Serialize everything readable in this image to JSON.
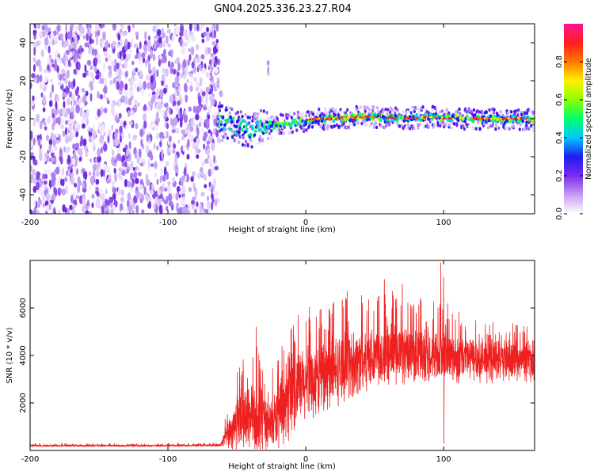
{
  "title": "GN04.2025.336.23.27.R04",
  "chart_data": [
    {
      "type": "heatmap",
      "xlabel": "Height of straight line (km)",
      "ylabel": "Frequency (Hz)",
      "xlim": [
        -200,
        166
      ],
      "ylim": [
        -50,
        50
      ],
      "xticks": [
        -200,
        -100,
        0,
        100
      ],
      "yticks": [
        -40,
        -20,
        0,
        20,
        40
      ],
      "noise_region_x": [
        -200,
        -63
      ],
      "signal_track": {
        "x": [
          -63,
          -55,
          -45,
          -38,
          -30,
          -20,
          -10,
          0,
          10,
          20,
          30,
          40,
          50,
          60,
          70,
          80,
          90,
          100,
          110,
          120,
          130,
          140,
          150,
          160,
          166
        ],
        "freq": [
          -2,
          -3,
          -5,
          -6,
          -4,
          -3,
          -2,
          -1,
          0,
          0,
          0.5,
          1,
          1,
          0.5,
          0,
          0.5,
          1,
          0.5,
          0,
          0,
          0,
          0,
          0,
          -0.5,
          -1
        ]
      },
      "isolated_blob": {
        "x": -27,
        "freq": [
          22,
          30
        ]
      },
      "colorbar": {
        "label": "Normalized spectral amplitude",
        "range": [
          0,
          1
        ],
        "ticks": [
          0.0,
          0.2,
          0.4,
          0.6,
          0.8
        ],
        "tick_labels": [
          "0.0",
          "0.2",
          "0.4",
          "0.6",
          "0.8"
        ],
        "colors": [
          "#ffffff",
          "#c89bf2",
          "#7a2bf0",
          "#1f1cf0",
          "#00c8ff",
          "#00ff6a",
          "#8cff00",
          "#fff000",
          "#ff7800",
          "#ff1e1e",
          "#ff1493"
        ]
      }
    },
    {
      "type": "line",
      "xlabel": "Height of straight line (km)",
      "ylabel": "SNR (10 * v/v)",
      "xlim": [
        -200,
        166
      ],
      "ylim": [
        0,
        8000
      ],
      "xticks": [
        -200,
        -100,
        0,
        100
      ],
      "yticks": [
        2000,
        4000,
        6000
      ],
      "color": "#ee2020",
      "envelope": {
        "x": [
          -200,
          -120,
          -62,
          -55,
          -45,
          -35,
          -25,
          -20,
          -15,
          -10,
          -5,
          0,
          10,
          20,
          30,
          40,
          50,
          60,
          70,
          80,
          90,
          100,
          110,
          120,
          130,
          140,
          150,
          160,
          166
        ],
        "y": [
          200,
          200,
          220,
          800,
          1400,
          1400,
          1100,
          1400,
          1800,
          2200,
          2600,
          2800,
          3000,
          3300,
          3600,
          3800,
          4000,
          4100,
          4100,
          4000,
          4050,
          4000,
          3900,
          3900,
          3800,
          3800,
          3750,
          3700,
          3700
        ],
        "amp": [
          50,
          50,
          60,
          900,
          1500,
          1700,
          1300,
          1500,
          1600,
          1700,
          1800,
          1800,
          1700,
          1700,
          1600,
          1600,
          1600,
          1500,
          1400,
          1400,
          1300,
          1300,
          1200,
          1100,
          1000,
          1000,
          900,
          900,
          900
        ]
      },
      "peaks": [
        {
          "x": -36,
          "y": 5200
        },
        {
          "x": 30,
          "y": 6700
        },
        {
          "x": 57,
          "y": 7200
        },
        {
          "x": 70,
          "y": 7000
        },
        {
          "x": 98,
          "y": 7900
        },
        {
          "x": 100,
          "y": 7300
        }
      ],
      "dips": [
        {
          "x": 100,
          "y": 300
        }
      ]
    }
  ]
}
